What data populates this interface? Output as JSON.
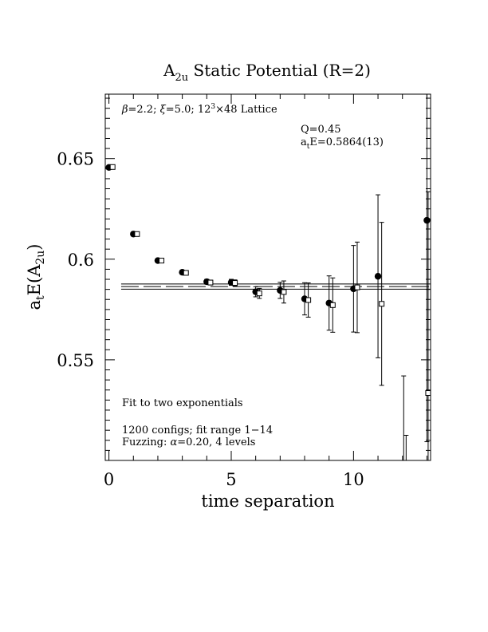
{
  "chart_data": {
    "type": "scatter",
    "title": {
      "main": "A",
      "sub": "2u",
      "rest": " Static Potential (R=2)"
    },
    "xlabel": "time separation",
    "ylabel": {
      "pre": "a",
      "sub1": "t",
      "mid": "E(A",
      "sub2": "2u",
      "post": ")"
    },
    "xlim": [
      -0.15,
      13.15
    ],
    "ylim": [
      0.5,
      0.682
    ],
    "x_ticks": [
      0,
      5,
      10
    ],
    "x_tick_labels": [
      "0",
      "5",
      "10"
    ],
    "y_ticks": [
      0.55,
      0.6,
      0.65
    ],
    "y_tick_labels": [
      "0.55",
      "0.6",
      "0.65"
    ],
    "annotations": {
      "lattice": {
        "beta": "β",
        "t1": "=2.2; ",
        "xi": "ξ",
        "t2": "=5.0; 12",
        "sup": "3",
        "t3": "×48 Lattice"
      },
      "q": "Q=0.45",
      "ate": {
        "pre": "a",
        "sub": "t",
        "post": "E=0.5864(13)"
      },
      "fit": "Fit to two exponentials",
      "configs": "1200 configs; fit range 1−14",
      "fuzzing": {
        "pre": "Fuzzing: ",
        "alpha": "α",
        "post": "=0.20, 4 levels"
      }
    },
    "series": [
      {
        "marker": "filled-circle",
        "points": [
          {
            "x": 0,
            "y": 0.6456,
            "err": 0.0006
          },
          {
            "x": 1,
            "y": 0.6125,
            "err": 0.0007
          },
          {
            "x": 2,
            "y": 0.5993,
            "err": 0.0008
          },
          {
            "x": 3,
            "y": 0.5935,
            "err": 0.001
          },
          {
            "x": 4,
            "y": 0.5888,
            "err": 0.0012
          },
          {
            "x": 5,
            "y": 0.5885,
            "err": 0.0015
          },
          {
            "x": 6,
            "y": 0.5838,
            "err": 0.0025
          },
          {
            "x": 7,
            "y": 0.5845,
            "err": 0.004
          },
          {
            "x": 8,
            "y": 0.5803,
            "err": 0.008
          },
          {
            "x": 9,
            "y": 0.5782,
            "err": 0.0135
          },
          {
            "x": 10,
            "y": 0.5853,
            "err": 0.0215
          },
          {
            "x": 11,
            "y": 0.5915,
            "err": 0.0405
          },
          {
            "x": 13,
            "y": 0.6193,
            "err": 0.11
          }
        ]
      },
      {
        "marker": "open-square",
        "points": [
          {
            "x": 0.15,
            "y": 0.6458,
            "err": 0.0006
          },
          {
            "x": 1.15,
            "y": 0.6125,
            "err": 0.0007
          },
          {
            "x": 2.15,
            "y": 0.5993,
            "err": 0.0008
          },
          {
            "x": 3.15,
            "y": 0.5932,
            "err": 0.001
          },
          {
            "x": 4.15,
            "y": 0.5884,
            "err": 0.0012
          },
          {
            "x": 5.15,
            "y": 0.5882,
            "err": 0.0015
          },
          {
            "x": 6.15,
            "y": 0.583,
            "err": 0.0025
          },
          {
            "x": 7.15,
            "y": 0.5837,
            "err": 0.0055
          },
          {
            "x": 8.15,
            "y": 0.5797,
            "err": 0.0085
          },
          {
            "x": 9.15,
            "y": 0.5772,
            "err": 0.0135
          },
          {
            "x": 10.15,
            "y": 0.586,
            "err": 0.0225
          },
          {
            "x": 11.15,
            "y": 0.5778,
            "err": 0.0405
          },
          {
            "x": 12.05,
            "y": 0.499,
            "err": 0.043,
            "off_scale": true
          },
          {
            "x": 12.15,
            "y": 0.499,
            "err": 0.0135,
            "off_scale": true
          },
          {
            "x": 13.05,
            "y": 0.5335,
            "err": 0.1
          }
        ]
      }
    ],
    "fit": {
      "central": 0.5864,
      "err": 0.0013,
      "x_range": [
        0.5,
        13.15
      ]
    }
  }
}
